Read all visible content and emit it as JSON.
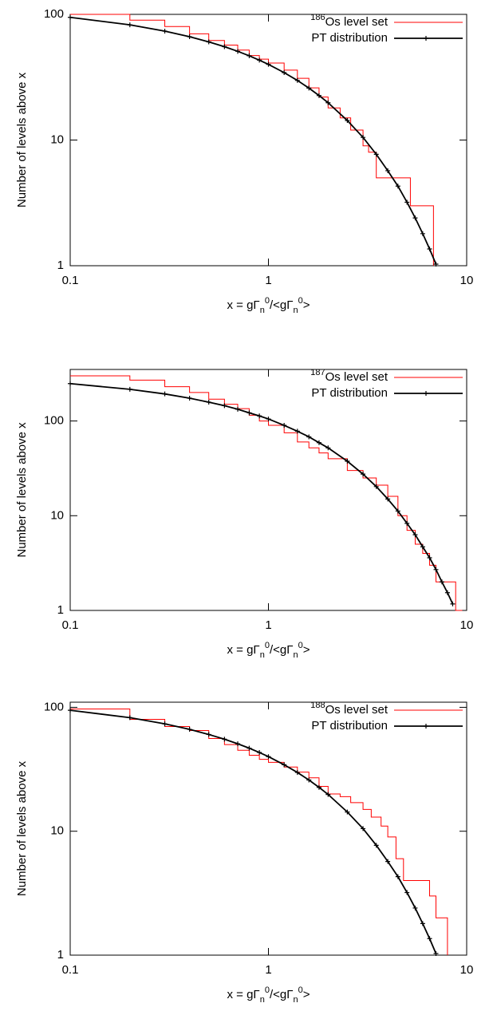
{
  "chart_data": [
    {
      "type": "line",
      "xscale": "log",
      "yscale": "log",
      "legend": "upper right",
      "xlabel": [
        "x = gΓ",
        "n",
        "0",
        "/<gΓ",
        "n",
        "0",
        ">"
      ],
      "ylabel": "Number of levels above x",
      "xlim": [
        0.1,
        10
      ],
      "ylim": [
        1,
        100
      ],
      "xticks": [
        0.1,
        1,
        10
      ],
      "yticks": [
        1,
        10,
        100
      ],
      "series": [
        {
          "mass_number": "186",
          "name": "Os level set",
          "color": "#ff0000",
          "style": "step",
          "x": [
            0.1,
            0.2,
            0.3,
            0.4,
            0.5,
            0.6,
            0.7,
            0.8,
            0.9,
            1.0,
            1.2,
            1.4,
            1.6,
            1.8,
            2.0,
            2.3,
            2.6,
            3.0,
            3.2,
            3.5,
            5.2,
            6.8
          ],
          "values": [
            100,
            90,
            80,
            70,
            62,
            57,
            52,
            47,
            44,
            41,
            36,
            31,
            26,
            22,
            18,
            15,
            12,
            9,
            8,
            5,
            3,
            1
          ]
        },
        {
          "name": "PT distribution",
          "color": "#000000",
          "marker": "+",
          "x": [
            0.1,
            0.2,
            0.3,
            0.4,
            0.5,
            0.6,
            0.7,
            0.8,
            0.9,
            1.0,
            1.2,
            1.4,
            1.6,
            1.8,
            2.0,
            2.5,
            3.0,
            3.5,
            4.0,
            4.5,
            5.0,
            5.5,
            6.0,
            6.5,
            7.0
          ],
          "values": [
            94.7,
            82.5,
            73.6,
            66.4,
            60.4,
            55.3,
            50.8,
            46.8,
            43.2,
            40.0,
            34.4,
            29.8,
            25.9,
            22.6,
            19.8,
            14.3,
            10.5,
            7.7,
            5.7,
            4.3,
            3.2,
            2.4,
            1.8,
            1.36,
            1.03
          ]
        }
      ]
    },
    {
      "type": "line",
      "xscale": "log",
      "yscale": "log",
      "legend": "upper right",
      "xlabel": [
        "x = gΓ",
        "n",
        "0",
        "/<gΓ",
        "n",
        "0",
        ">"
      ],
      "ylabel": "Number of levels above x",
      "xlim": [
        0.1,
        10
      ],
      "ylim": [
        1,
        350
      ],
      "xticks": [
        0.1,
        1,
        10
      ],
      "yticks": [
        1,
        10,
        100
      ],
      "series": [
        {
          "mass_number": "187",
          "name": "Os level set",
          "color": "#ff0000",
          "style": "step",
          "x": [
            0.1,
            0.2,
            0.3,
            0.4,
            0.5,
            0.6,
            0.7,
            0.8,
            0.9,
            1.0,
            1.2,
            1.4,
            1.6,
            1.8,
            2.0,
            2.5,
            3.0,
            3.5,
            4.0,
            4.5,
            5.0,
            5.5,
            6.0,
            6.5,
            7.0,
            8.8,
            9.5
          ],
          "values": [
            300,
            270,
            230,
            200,
            170,
            150,
            135,
            115,
            100,
            90,
            75,
            60,
            52,
            46,
            40,
            30,
            25,
            21,
            16,
            10,
            7,
            5,
            4,
            3,
            2,
            1,
            1
          ]
        },
        {
          "name": "PT distribution",
          "color": "#000000",
          "marker": "+",
          "x": [
            0.1,
            0.2,
            0.3,
            0.4,
            0.5,
            0.6,
            0.7,
            0.8,
            0.9,
            1.0,
            1.2,
            1.4,
            1.6,
            1.8,
            2.0,
            2.5,
            3.0,
            3.5,
            4.0,
            4.5,
            5.0,
            5.5,
            6.0,
            6.5,
            7.0,
            7.5,
            8.0,
            8.5
          ],
          "values": [
            248,
            216,
            193,
            174,
            158,
            145,
            133,
            122,
            113,
            105,
            90,
            78,
            68,
            59,
            52,
            37.6,
            27.5,
            20.3,
            15.0,
            11.2,
            8.3,
            6.3,
            4.7,
            3.6,
            2.7,
            2.0,
            1.54,
            1.17
          ]
        }
      ]
    },
    {
      "type": "line",
      "xscale": "log",
      "yscale": "log",
      "legend": "upper right",
      "xlabel": [
        "x = gΓ",
        "n",
        "0",
        "/<gΓ",
        "n",
        "0",
        ">"
      ],
      "ylabel": "Number of levels above x",
      "xlim": [
        0.1,
        10
      ],
      "ylim": [
        1,
        110
      ],
      "xticks": [
        0.1,
        1,
        10
      ],
      "yticks": [
        1,
        10,
        100
      ],
      "series": [
        {
          "mass_number": "188",
          "name": "Os level set",
          "color": "#ff0000",
          "style": "step",
          "x": [
            0.1,
            0.2,
            0.3,
            0.4,
            0.5,
            0.6,
            0.7,
            0.8,
            0.9,
            1.0,
            1.2,
            1.4,
            1.6,
            1.8,
            2.0,
            2.3,
            2.6,
            3.0,
            3.3,
            3.7,
            4.0,
            4.4,
            4.8,
            6.5,
            7.0,
            8.0
          ],
          "values": [
            97,
            80,
            70,
            65,
            56,
            50,
            45,
            41,
            38,
            36,
            33,
            30,
            27,
            23,
            20,
            19,
            17,
            15,
            13,
            11,
            9,
            6,
            4,
            3,
            2,
            1
          ]
        },
        {
          "name": "PT distribution",
          "color": "#000000",
          "marker": "+",
          "x": [
            0.1,
            0.2,
            0.3,
            0.4,
            0.5,
            0.6,
            0.7,
            0.8,
            0.9,
            1.0,
            1.2,
            1.4,
            1.6,
            1.8,
            2.0,
            2.5,
            3.0,
            3.5,
            4.0,
            4.5,
            5.0,
            5.5,
            6.0,
            6.5,
            7.0
          ],
          "values": [
            94.7,
            82.5,
            73.6,
            66.4,
            60.4,
            55.3,
            50.8,
            46.8,
            43.2,
            40.0,
            34.4,
            29.8,
            25.9,
            22.6,
            19.8,
            14.3,
            10.5,
            7.7,
            5.7,
            4.3,
            3.2,
            2.4,
            1.8,
            1.36,
            1.03
          ]
        }
      ]
    }
  ]
}
